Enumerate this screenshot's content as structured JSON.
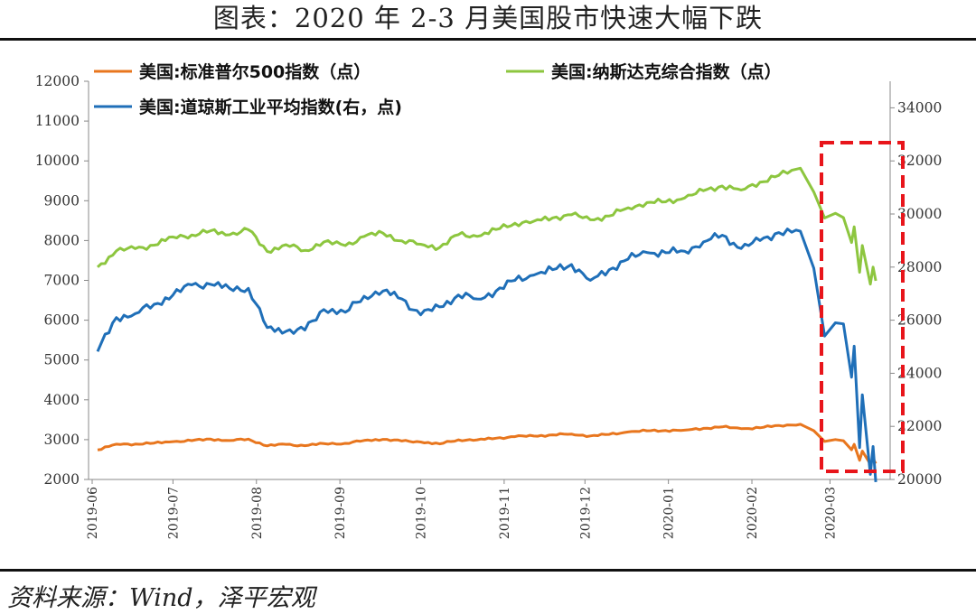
{
  "header": {
    "title": "图表：2020 年 2-3 月美国股市快速大幅下跌"
  },
  "footer": {
    "source": "资料来源：Wind，泽平宏观"
  },
  "chart_data": {
    "type": "line",
    "title": "图表：2020 年 2-3 月美国股市快速大幅下跌",
    "left_axis": {
      "ylim": [
        2000,
        12000
      ],
      "ticks": [
        "2000",
        "3000",
        "4000",
        "5000",
        "6000",
        "7000",
        "8000",
        "9000",
        "10000",
        "11000",
        "12000"
      ]
    },
    "right_axis": {
      "ylim": [
        20000,
        35000
      ],
      "ticks": [
        "20000",
        "22000",
        "24000",
        "26000",
        "28000",
        "30000",
        "32000",
        "34000"
      ]
    },
    "x_ticks": [
      "2019-06",
      "2019-07",
      "2019-08",
      "2019-09",
      "2019-10",
      "2019-11",
      "2019-12",
      "2020-01",
      "2020-02",
      "2020-03"
    ],
    "grid": false,
    "legend_position": "top",
    "highlight": {
      "label": "dashed-red-box",
      "from": "2020-02-20",
      "to": "2020-03-18",
      "color": "#e8151b"
    },
    "series": [
      {
        "name": "美国:标准普尔500指数（点）",
        "axis": "left",
        "color": "#e8761e",
        "points": [
          [
            "2019-06-03",
            2744
          ],
          [
            "2019-06-10",
            2886
          ],
          [
            "2019-06-17",
            2890
          ],
          [
            "2019-06-24",
            2913
          ],
          [
            "2019-07-01",
            2950
          ],
          [
            "2019-07-08",
            2975
          ],
          [
            "2019-07-15",
            3014
          ],
          [
            "2019-07-22",
            2977
          ],
          [
            "2019-07-29",
            3013
          ],
          [
            "2019-08-05",
            2844
          ],
          [
            "2019-08-12",
            2883
          ],
          [
            "2019-08-19",
            2847
          ],
          [
            "2019-08-26",
            2900
          ],
          [
            "2019-09-03",
            2906
          ],
          [
            "2019-09-10",
            2979
          ],
          [
            "2019-09-17",
            3006
          ],
          [
            "2019-09-24",
            2966
          ],
          [
            "2019-10-01",
            2940
          ],
          [
            "2019-10-08",
            2893
          ],
          [
            "2019-10-15",
            2995
          ],
          [
            "2019-10-22",
            2995
          ],
          [
            "2019-10-29",
            3036
          ],
          [
            "2019-11-05",
            3075
          ],
          [
            "2019-11-12",
            3091
          ],
          [
            "2019-11-19",
            3120
          ],
          [
            "2019-11-26",
            3140
          ],
          [
            "2019-12-03",
            3093
          ],
          [
            "2019-12-10",
            3132
          ],
          [
            "2019-12-17",
            3192
          ],
          [
            "2019-12-24",
            3223
          ],
          [
            "2019-12-31",
            3230
          ],
          [
            "2020-01-07",
            3237
          ],
          [
            "2020-01-14",
            3283
          ],
          [
            "2020-01-21",
            3320
          ],
          [
            "2020-01-28",
            3276
          ],
          [
            "2020-02-04",
            3297
          ],
          [
            "2020-02-11",
            3357
          ],
          [
            "2020-02-19",
            3386
          ],
          [
            "2020-02-24",
            3225
          ],
          [
            "2020-02-28",
            2954
          ],
          [
            "2020-03-03",
            3003
          ],
          [
            "2020-03-06",
            2972
          ],
          [
            "2020-03-09",
            2746
          ],
          [
            "2020-03-10",
            2882
          ],
          [
            "2020-03-12",
            2480
          ],
          [
            "2020-03-13",
            2711
          ],
          [
            "2020-03-16",
            2386
          ],
          [
            "2020-03-17",
            2529
          ],
          [
            "2020-03-18",
            2398
          ]
        ]
      },
      {
        "name": "美国:纳斯达克综合指数（点）",
        "axis": "left",
        "color": "#8dc63f",
        "points": [
          [
            "2019-06-03",
            7333
          ],
          [
            "2019-06-10",
            7742
          ],
          [
            "2019-06-17",
            7796
          ],
          [
            "2019-06-24",
            7884
          ],
          [
            "2019-07-01",
            8091
          ],
          [
            "2019-07-08",
            8140
          ],
          [
            "2019-07-15",
            8244
          ],
          [
            "2019-07-22",
            8146
          ],
          [
            "2019-07-29",
            8273
          ],
          [
            "2019-08-05",
            7726
          ],
          [
            "2019-08-12",
            7895
          ],
          [
            "2019-08-19",
            7752
          ],
          [
            "2019-08-26",
            7963
          ],
          [
            "2019-09-03",
            7874
          ],
          [
            "2019-09-10",
            8103
          ],
          [
            "2019-09-17",
            8186
          ],
          [
            "2019-09-24",
            7994
          ],
          [
            "2019-10-01",
            7908
          ],
          [
            "2019-10-08",
            7823
          ],
          [
            "2019-10-15",
            8148
          ],
          [
            "2019-10-22",
            8104
          ],
          [
            "2019-10-29",
            8276
          ],
          [
            "2019-11-05",
            8435
          ],
          [
            "2019-11-12",
            8486
          ],
          [
            "2019-11-19",
            8570
          ],
          [
            "2019-11-26",
            8647
          ],
          [
            "2019-12-03",
            8521
          ],
          [
            "2019-12-10",
            8616
          ],
          [
            "2019-12-17",
            8823
          ],
          [
            "2019-12-24",
            8952
          ],
          [
            "2019-12-31",
            8972
          ],
          [
            "2020-01-07",
            9068
          ],
          [
            "2020-01-14",
            9251
          ],
          [
            "2020-01-21",
            9370
          ],
          [
            "2020-01-28",
            9270
          ],
          [
            "2020-02-04",
            9467
          ],
          [
            "2020-02-11",
            9638
          ],
          [
            "2020-02-19",
            9817
          ],
          [
            "2020-02-24",
            9221
          ],
          [
            "2020-02-28",
            8567
          ],
          [
            "2020-03-03",
            8684
          ],
          [
            "2020-03-06",
            8575
          ],
          [
            "2020-03-09",
            7950
          ],
          [
            "2020-03-10",
            8344
          ],
          [
            "2020-03-12",
            7201
          ],
          [
            "2020-03-13",
            7875
          ],
          [
            "2020-03-16",
            6904
          ],
          [
            "2020-03-17",
            7334
          ],
          [
            "2020-03-18",
            6989
          ]
        ]
      },
      {
        "name": "美国:道琼斯工业平均指数(右，点)",
        "axis": "right",
        "color": "#1f6fb8",
        "points": [
          [
            "2019-06-03",
            24820
          ],
          [
            "2019-06-10",
            26100
          ],
          [
            "2019-06-17",
            26250
          ],
          [
            "2019-06-24",
            26600
          ],
          [
            "2019-07-01",
            26950
          ],
          [
            "2019-07-08",
            27330
          ],
          [
            "2019-07-15",
            27350
          ],
          [
            "2019-07-22",
            27200
          ],
          [
            "2019-07-29",
            27200
          ],
          [
            "2019-08-05",
            25720
          ],
          [
            "2019-08-12",
            25580
          ],
          [
            "2019-08-19",
            25630
          ],
          [
            "2019-08-26",
            26400
          ],
          [
            "2019-09-03",
            26300
          ],
          [
            "2019-09-10",
            26900
          ],
          [
            "2019-09-17",
            27100
          ],
          [
            "2019-09-24",
            26800
          ],
          [
            "2019-10-01",
            26200
          ],
          [
            "2019-10-08",
            26500
          ],
          [
            "2019-10-15",
            26950
          ],
          [
            "2019-10-22",
            26800
          ],
          [
            "2019-10-29",
            27100
          ],
          [
            "2019-11-05",
            27500
          ],
          [
            "2019-11-12",
            27700
          ],
          [
            "2019-11-19",
            27900
          ],
          [
            "2019-11-26",
            28100
          ],
          [
            "2019-12-03",
            27500
          ],
          [
            "2019-12-10",
            27900
          ],
          [
            "2019-12-17",
            28300
          ],
          [
            "2019-12-24",
            28550
          ],
          [
            "2019-12-31",
            28540
          ],
          [
            "2020-01-07",
            28600
          ],
          [
            "2020-01-14",
            28950
          ],
          [
            "2020-01-21",
            29200
          ],
          [
            "2020-01-28",
            28700
          ],
          [
            "2020-02-04",
            29000
          ],
          [
            "2020-02-11",
            29300
          ],
          [
            "2020-02-19",
            29350
          ],
          [
            "2020-02-24",
            27960
          ],
          [
            "2020-02-28",
            25400
          ],
          [
            "2020-03-03",
            25900
          ],
          [
            "2020-03-06",
            25860
          ],
          [
            "2020-03-09",
            23850
          ],
          [
            "2020-03-10",
            25020
          ],
          [
            "2020-03-12",
            21200
          ],
          [
            "2020-03-13",
            23190
          ],
          [
            "2020-03-16",
            20190
          ],
          [
            "2020-03-17",
            21240
          ],
          [
            "2020-03-18",
            19900
          ]
        ]
      }
    ]
  }
}
